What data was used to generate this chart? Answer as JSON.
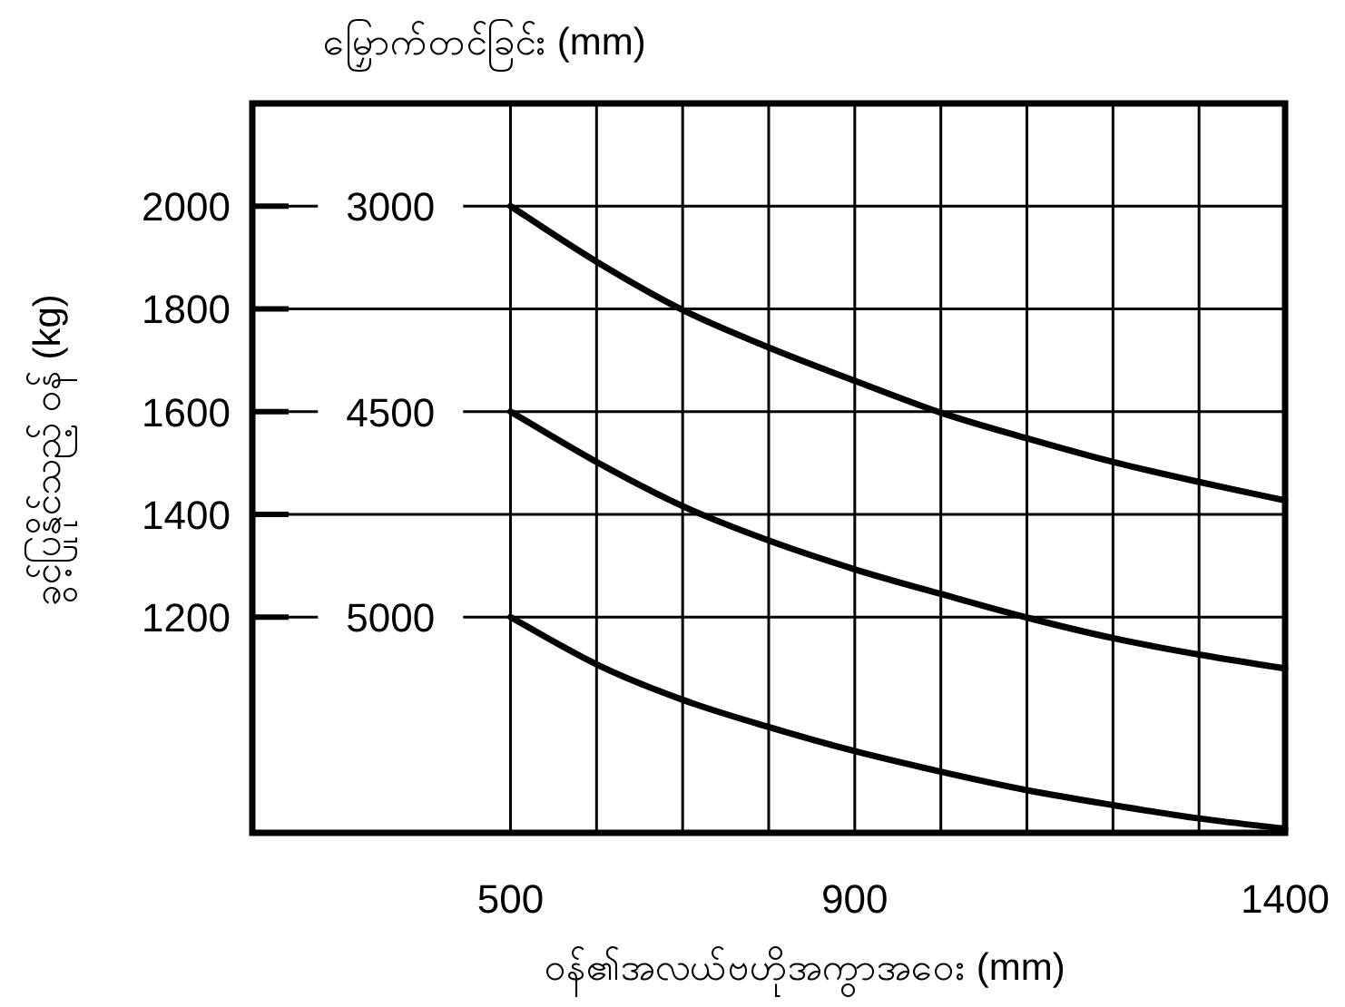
{
  "chart_data": {
    "type": "line",
    "legend_title": "မြှောက်တင်ခြင်း (mm)",
    "xlabel": "ဝန်၏အလယ်ဗဟိုအကွာအဝေး (mm)",
    "ylabel": "ခွင့်ပြုနိုင်သည့် ဝန် (kg)",
    "x": [
      500,
      600,
      700,
      800,
      900,
      1000,
      1100,
      1200,
      1300,
      1400
    ],
    "series": [
      {
        "name": "3000",
        "color": "#000000",
        "values": [
          2000,
          1892,
          1798,
          1725,
          1660,
          1598,
          1548,
          1502,
          1463,
          1427
        ]
      },
      {
        "name": "4500",
        "color": "#000000",
        "values": [
          1600,
          1502,
          1416,
          1349,
          1293,
          1245,
          1199,
          1159,
          1127,
          1100
        ]
      },
      {
        "name": "5000",
        "color": "#000000",
        "values": [
          1200,
          1108,
          1039,
          986,
          939,
          899,
          863,
          834,
          808,
          788
        ]
      }
    ],
    "xlim": [
      200,
      1400
    ],
    "ylim": [
      780,
      2200
    ],
    "xticks": [
      500,
      {
        "value": 600,
        "label": null
      },
      {
        "value": 700,
        "label": null
      },
      {
        "value": 800,
        "label": null
      },
      900,
      {
        "value": 1000,
        "label": null
      },
      {
        "value": 1100,
        "label": null
      },
      {
        "value": 1200,
        "label": null
      },
      {
        "value": 1300,
        "label": null
      },
      1400
    ],
    "yticks": [
      1200,
      1400,
      1600,
      1800,
      2000
    ],
    "grid": true,
    "legend": "left",
    "line_style": "solid"
  }
}
